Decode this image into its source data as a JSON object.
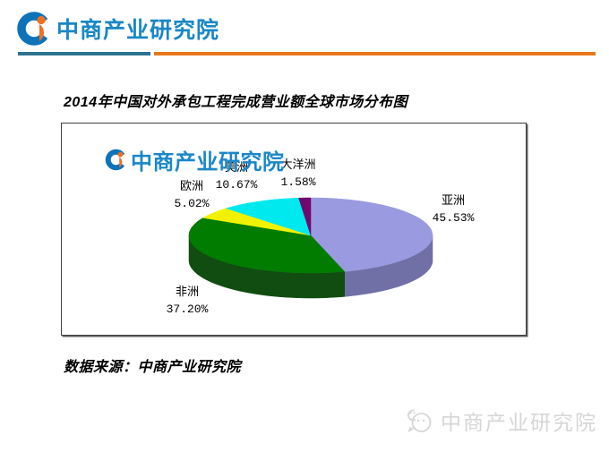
{
  "header": {
    "brand": "中商产业研究院"
  },
  "title": "2014年中国对外承包工程完成营业额全球市场分布图",
  "chart": {
    "brand": "中商产业研究院"
  },
  "source": "数据来源：中商产业研究院",
  "watermark": {
    "brand": "中商产业研究院"
  },
  "brand_colors": {
    "logo_blue": "#1987C5",
    "logo_orange": "#F07020",
    "rule_teal": "#2C7390",
    "rule_orange": "#E8781C",
    "watermark_gray": "#D6D6D6"
  },
  "chart_data": {
    "type": "pie",
    "style": "3d",
    "title": "2014年中国对外承包工程完成营业额全球市场分布图",
    "unit": "%",
    "start_angle_deg": 0,
    "direction": "clockwise",
    "legend": "none",
    "data_labels": "category_and_percent",
    "slices": [
      {
        "label": "亚洲",
        "value": 45.53,
        "display": "45.53%",
        "color": "#9A9AE0",
        "side_color": "#7070A6"
      },
      {
        "label": "非洲",
        "value": 37.2,
        "display": "37.20%",
        "color": "#017C01",
        "side_color": "#114D11"
      },
      {
        "label": "欧洲",
        "value": 5.02,
        "display": "5.02%",
        "color": "#F2F200",
        "side_color": "#8A8A00"
      },
      {
        "label": "美洲",
        "value": 10.67,
        "display": "10.67%",
        "color": "#00E9EE",
        "side_color": "#009AA0"
      },
      {
        "label": "大洋洲",
        "value": 1.58,
        "display": "1.58%",
        "color": "#70086E",
        "side_color": "#3F053E"
      }
    ]
  }
}
